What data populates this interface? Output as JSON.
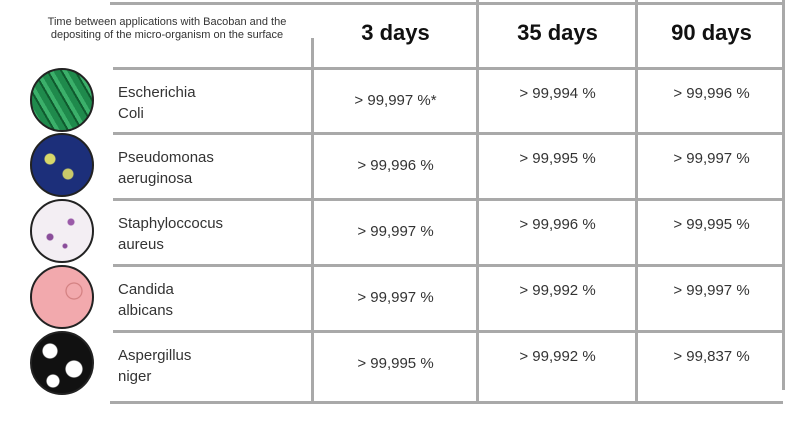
{
  "header": {
    "caption": "Time between applications with Bacoban and the depositing of the micro-organism on the surface",
    "columns": [
      "3 days",
      "35 days",
      "90 days"
    ]
  },
  "rows": [
    {
      "organism": [
        "Escherichia",
        "Coli"
      ],
      "icon": "e-coli-image",
      "color": "#1f8a4c",
      "values": [
        "> 99,997 %*",
        "> 99,994 %",
        "> 99,996 %"
      ]
    },
    {
      "organism": [
        "Pseudomonas",
        "aeruginosa"
      ],
      "icon": "pseudomonas-image",
      "color": "#1c2f7a",
      "values": [
        "> 99,996 %",
        "> 99,995 %",
        "> 99,997 %"
      ]
    },
    {
      "organism": [
        "Staphyloccocus",
        "aureus"
      ],
      "icon": "staphylococcus-image",
      "color": "#f3eef3",
      "values": [
        "> 99,997 %",
        "> 99,996 %",
        "> 99,995 %"
      ]
    },
    {
      "organism": [
        "Candida",
        "albicans"
      ],
      "icon": "candida-image",
      "color": "#f2a9ad",
      "values": [
        "> 99,997 %",
        "> 99,992 %",
        "> 99,997 %"
      ]
    },
    {
      "organism": [
        "Aspergillus",
        "niger"
      ],
      "icon": "aspergillus-image",
      "color": "#111111",
      "values": [
        "> 99,995 %",
        "> 99,992 %",
        "> 99,837 %"
      ]
    }
  ]
}
